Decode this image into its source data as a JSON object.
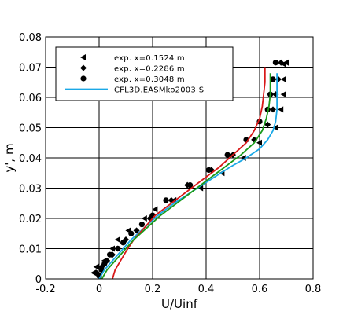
{
  "chart_data": {
    "type": "line",
    "xlabel": "U/Uinf",
    "ylabel": "y', m",
    "xlim": [
      -0.2,
      0.8
    ],
    "ylim": [
      0,
      0.08
    ],
    "xticks": [
      -0.2,
      0,
      0.2,
      0.4,
      0.6,
      0.8
    ],
    "yticks": [
      0,
      0.01,
      0.02,
      0.03,
      0.04,
      0.05,
      0.06,
      0.07,
      0.08
    ],
    "xtick_labels": [
      "-0.2",
      "0",
      "0.2",
      "0.4",
      "0.6",
      "0.8"
    ],
    "ytick_labels": [
      "0",
      "0.01",
      "0.02",
      "0.03",
      "0.04",
      "0.05",
      "0.06",
      "0.07",
      "0.08"
    ],
    "grid": true,
    "legend_position": "top-left",
    "series": [
      {
        "name": "exp. x=0.1524 m",
        "kind": "scatter",
        "marker": "triangle-left",
        "color": "#000000",
        "x": [
          -0.02,
          -0.01,
          0.02,
          0.04,
          0.05,
          0.07,
          0.11,
          0.17,
          0.21,
          0.28,
          0.38,
          0.46,
          0.54,
          0.6,
          0.66,
          0.68,
          0.69,
          0.69,
          0.69,
          0.7
        ],
        "y": [
          0.002,
          0.004,
          0.006,
          0.008,
          0.01,
          0.013,
          0.016,
          0.02,
          0.023,
          0.026,
          0.03,
          0.035,
          0.04,
          0.045,
          0.05,
          0.056,
          0.061,
          0.066,
          0.071,
          0.0715
        ]
      },
      {
        "name": "exp. x=0.2286 m",
        "kind": "scatter",
        "marker": "diamond",
        "color": "#000000",
        "x": [
          -0.01,
          0.01,
          0.03,
          0.05,
          0.07,
          0.1,
          0.14,
          0.19,
          0.27,
          0.33,
          0.42,
          0.5,
          0.58,
          0.63,
          0.65,
          0.66,
          0.67,
          0.68
        ],
        "y": [
          0.002,
          0.004,
          0.006,
          0.008,
          0.01,
          0.013,
          0.016,
          0.02,
          0.026,
          0.031,
          0.036,
          0.041,
          0.046,
          0.051,
          0.056,
          0.061,
          0.066,
          0.0715
        ]
      },
      {
        "name": "exp. x=0.3048 m",
        "kind": "scatter",
        "marker": "circle",
        "color": "#000000",
        "x": [
          0.0,
          0.01,
          0.02,
          0.04,
          0.07,
          0.09,
          0.12,
          0.16,
          0.2,
          0.25,
          0.34,
          0.41,
          0.48,
          0.55,
          0.6,
          0.63,
          0.64,
          0.65,
          0.66
        ],
        "y": [
          0.001,
          0.003,
          0.005,
          0.008,
          0.01,
          0.012,
          0.015,
          0.018,
          0.021,
          0.026,
          0.031,
          0.036,
          0.041,
          0.046,
          0.052,
          0.056,
          0.061,
          0.066,
          0.0715
        ]
      },
      {
        "name": "CFL3D.EASMko2003-S",
        "kind": "line",
        "color": "#1aa8e6",
        "x": [
          0.0,
          0.02,
          0.05,
          0.08,
          0.12,
          0.17,
          0.22,
          0.28,
          0.35,
          0.42,
          0.49,
          0.55,
          0.6,
          0.63,
          0.65,
          0.66,
          0.665,
          0.665,
          0.665,
          0.665
        ],
        "y": [
          0.0,
          0.003,
          0.006,
          0.009,
          0.013,
          0.017,
          0.021,
          0.025,
          0.029,
          0.033,
          0.037,
          0.04,
          0.043,
          0.046,
          0.049,
          0.052,
          0.056,
          0.06,
          0.064,
          0.068
        ]
      },
      {
        "name": "",
        "kind": "line",
        "color": "#d81818",
        "x": [
          0.05,
          0.06,
          0.08,
          0.1,
          0.13,
          0.17,
          0.21,
          0.27,
          0.33,
          0.39,
          0.45,
          0.5,
          0.55,
          0.58,
          0.6,
          0.61,
          0.615,
          0.62,
          0.62,
          0.62
        ],
        "y": [
          0.0,
          0.003,
          0.006,
          0.009,
          0.013,
          0.017,
          0.021,
          0.025,
          0.029,
          0.033,
          0.037,
          0.041,
          0.045,
          0.049,
          0.053,
          0.057,
          0.061,
          0.065,
          0.068,
          0.07
        ]
      },
      {
        "name": "",
        "kind": "line",
        "color": "#1a9a1a",
        "x": [
          0.01,
          0.03,
          0.06,
          0.09,
          0.13,
          0.18,
          0.23,
          0.29,
          0.35,
          0.41,
          0.47,
          0.53,
          0.58,
          0.61,
          0.625,
          0.635,
          0.64,
          0.64,
          0.64,
          0.64
        ],
        "y": [
          0.0,
          0.003,
          0.006,
          0.009,
          0.013,
          0.017,
          0.021,
          0.025,
          0.029,
          0.033,
          0.037,
          0.041,
          0.045,
          0.049,
          0.053,
          0.057,
          0.061,
          0.064,
          0.066,
          0.068
        ]
      }
    ]
  }
}
